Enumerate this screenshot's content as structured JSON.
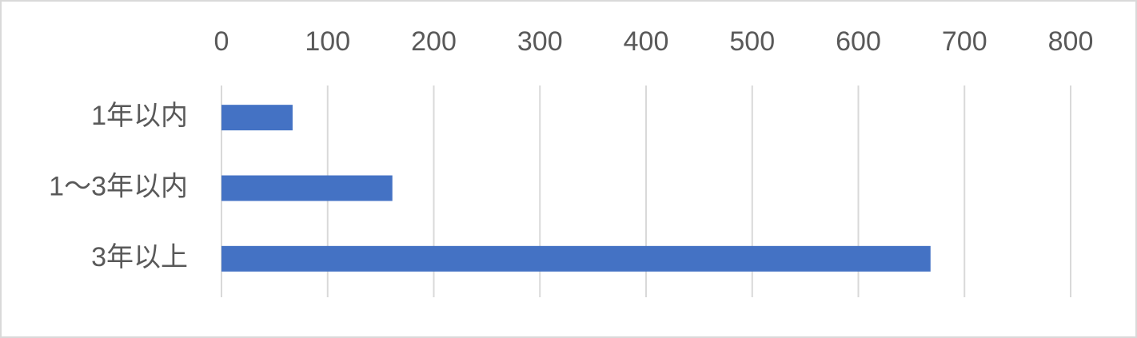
{
  "chart_data": {
    "type": "bar",
    "orientation": "horizontal",
    "categories": [
      "1年以内",
      "1～3年以内",
      "3年以上"
    ],
    "values": [
      67,
      161,
      668
    ],
    "color": "#4472c4",
    "xlim": [
      0,
      800
    ],
    "xticks": [
      0,
      100,
      200,
      300,
      400,
      500,
      600,
      700,
      800
    ],
    "grid": true,
    "tick_position": "top"
  }
}
